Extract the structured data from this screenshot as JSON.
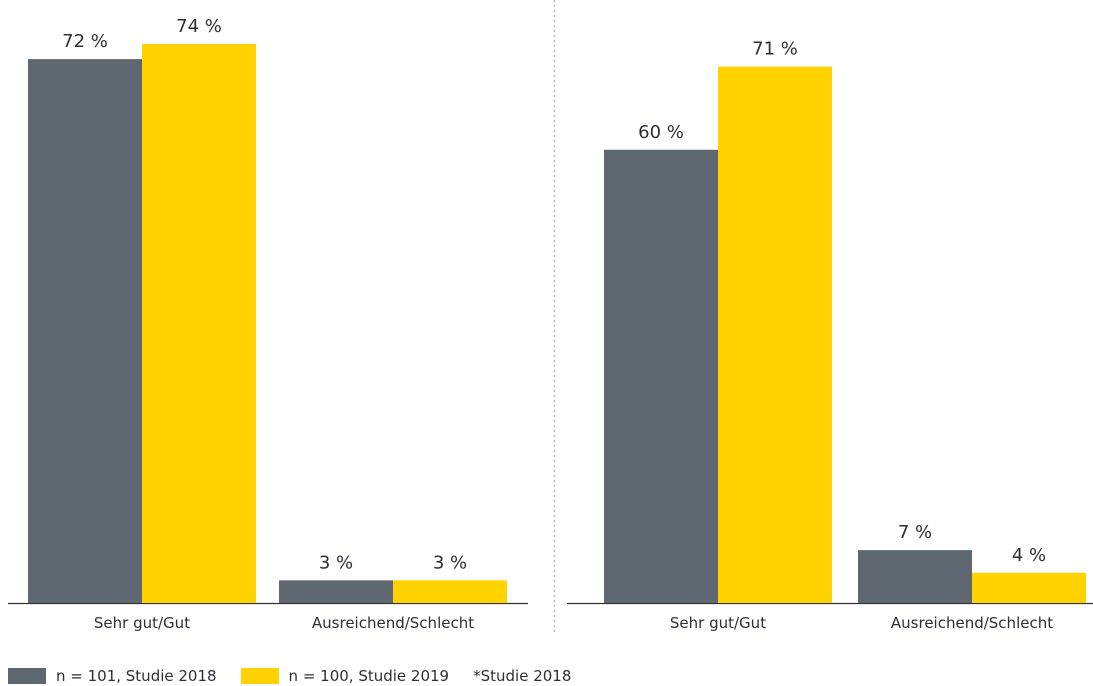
{
  "chart_data": [
    {
      "type": "bar",
      "categories": [
        "Sehr gut/Gut",
        "Ausreichend/Schlecht"
      ],
      "ylim": [
        0,
        80
      ],
      "series": [
        {
          "name": "n = 101, Studie 2018",
          "values": [
            72,
            3
          ],
          "labels": [
            "72 %",
            "3 %"
          ]
        },
        {
          "name": "n = 100,  Studie 2019",
          "values": [
            74,
            3
          ],
          "labels": [
            "74 %",
            "3 %"
          ]
        }
      ]
    },
    {
      "type": "bar",
      "categories": [
        "Sehr gut/Gut",
        "Ausreichend/Schlecht"
      ],
      "ylim": [
        0,
        80
      ],
      "series": [
        {
          "name": "n = 101, Studie 2018",
          "values": [
            60,
            7
          ],
          "labels": [
            "60 %",
            "7 %"
          ]
        },
        {
          "name": "n = 100,  Studie 2019",
          "values": [
            71,
            4
          ],
          "labels": [
            "71 %",
            "4 %"
          ]
        }
      ]
    }
  ],
  "colors": {
    "series_2018": "#5f6870",
    "series_2019": "#ffd200",
    "axis": "#333333",
    "divider": "#bbbbbb"
  },
  "legend": {
    "item_2018": "n = 101, Studie 2018",
    "item_2019": "n = 100,  Studie 2019",
    "note": "*Studie 2018"
  }
}
